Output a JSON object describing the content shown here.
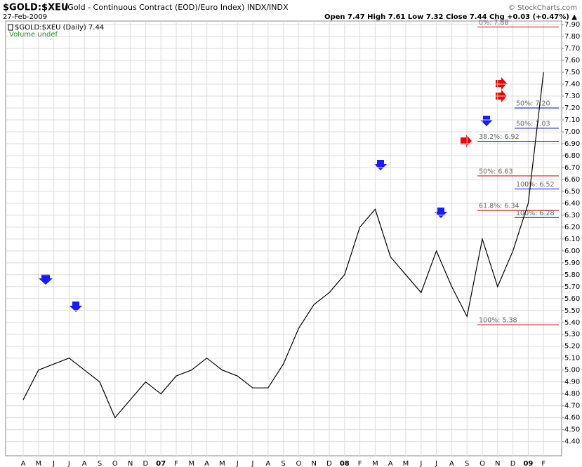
{
  "chart_data": {
    "type": "line",
    "title": "$GOLD:$XEU",
    "subtitle": "(Gold - Continuous Contract (EOD)/Euro Index) INDX/INDX",
    "date": "27-Feb-2009",
    "source": "© StockCharts.com",
    "quote": "Open 7.47  High 7.61  Low 7.32  Close 7.44  Chg +0.03 (+0.47%) ▲",
    "legend": [
      "$GOLD:$XEU (Daily) 7.44",
      "Volume undef"
    ],
    "categories": [
      "A",
      "M",
      "J",
      "J",
      "A",
      "S",
      "O",
      "N",
      "D",
      "07",
      "F",
      "M",
      "A",
      "M",
      "J",
      "J",
      "A",
      "S",
      "O",
      "N",
      "D",
      "08",
      "F",
      "M",
      "A",
      "M",
      "J",
      "J",
      "A",
      "S",
      "O",
      "N",
      "D",
      "09",
      "F"
    ],
    "series": [
      {
        "name": "$GOLD:$XEU",
        "color": "#000000",
        "values": [
          4.75,
          5.0,
          5.05,
          5.1,
          5.0,
          4.9,
          4.6,
          4.75,
          4.9,
          4.8,
          4.95,
          5.0,
          5.1,
          5.0,
          4.95,
          4.85,
          4.85,
          5.05,
          5.35,
          5.55,
          5.65,
          5.8,
          6.2,
          6.35,
          5.95,
          5.8,
          5.65,
          6.0,
          5.7,
          5.45,
          6.1,
          5.7,
          6.0,
          6.4,
          7.5
        ]
      }
    ],
    "ylim": [
      4.28,
      7.93
    ],
    "yticks": [
      {
        "value": 4.4,
        "label": "4.40"
      },
      {
        "value": 4.5,
        "label": "4.50"
      },
      {
        "value": 4.6,
        "label": "4.60"
      },
      {
        "value": 4.7,
        "label": "4.70"
      },
      {
        "value": 4.8,
        "label": "4.80"
      },
      {
        "value": 4.9,
        "label": "4.90"
      },
      {
        "value": 5.0,
        "label": "5.00"
      },
      {
        "value": 5.1,
        "label": "5.10"
      },
      {
        "value": 5.2,
        "label": "5.20"
      },
      {
        "value": 5.3,
        "label": "5.30"
      },
      {
        "value": 5.4,
        "label": "5.40"
      },
      {
        "value": 5.5,
        "label": "5.50"
      },
      {
        "value": 5.6,
        "label": "5.60"
      },
      {
        "value": 5.7,
        "label": "5.70"
      },
      {
        "value": 5.8,
        "label": "5.80"
      },
      {
        "value": 5.9,
        "label": "5.90"
      },
      {
        "value": 6.0,
        "label": "6.00"
      },
      {
        "value": 6.1,
        "label": "6.10"
      },
      {
        "value": 6.2,
        "label": "6.20"
      },
      {
        "value": 6.3,
        "label": "6.30"
      },
      {
        "value": 6.4,
        "label": "6.40"
      },
      {
        "value": 6.5,
        "label": "6.50"
      },
      {
        "value": 6.6,
        "label": "6.60"
      },
      {
        "value": 6.7,
        "label": "6.70"
      },
      {
        "value": 6.8,
        "label": "6.80"
      },
      {
        "value": 6.9,
        "label": "6.90"
      },
      {
        "value": 7.0,
        "label": "7.00"
      },
      {
        "value": 7.1,
        "label": "7.10"
      },
      {
        "value": 7.2,
        "label": "7.20"
      },
      {
        "value": 7.3,
        "label": "7.30"
      },
      {
        "value": 7.4,
        "label": "7.40"
      },
      {
        "value": 7.5,
        "label": "7.50"
      },
      {
        "value": 7.6,
        "label": "7.60"
      },
      {
        "value": 7.7,
        "label": "7.70"
      },
      {
        "value": 7.8,
        "label": "7.80"
      },
      {
        "value": 7.9,
        "label": "7.90"
      }
    ],
    "grid": true,
    "annotations": [
      {
        "text": "0%: 7.88",
        "value": 7.88,
        "color": "#cc0000"
      },
      {
        "text": "38.2%: 6.92",
        "value": 6.92,
        "color": "#cc0000"
      },
      {
        "text": "50%: 6.63",
        "value": 6.63,
        "color": "#cc0000"
      },
      {
        "text": "61.8%: 6.34",
        "value": 6.34,
        "color": "#cc0000"
      },
      {
        "text": "100%: 5.38",
        "value": 5.38,
        "color": "#cc0000"
      },
      {
        "text": "50%: 7.20",
        "value": 7.2,
        "color": "#0000cc"
      },
      {
        "text": "50%: 7.03",
        "value": 7.03,
        "color": "#0000cc"
      },
      {
        "text": "100%: 6.52",
        "value": 6.52,
        "color": "#0000cc"
      },
      {
        "text": "100%: 6.28",
        "value": 6.28,
        "color": "#0000cc"
      }
    ]
  }
}
